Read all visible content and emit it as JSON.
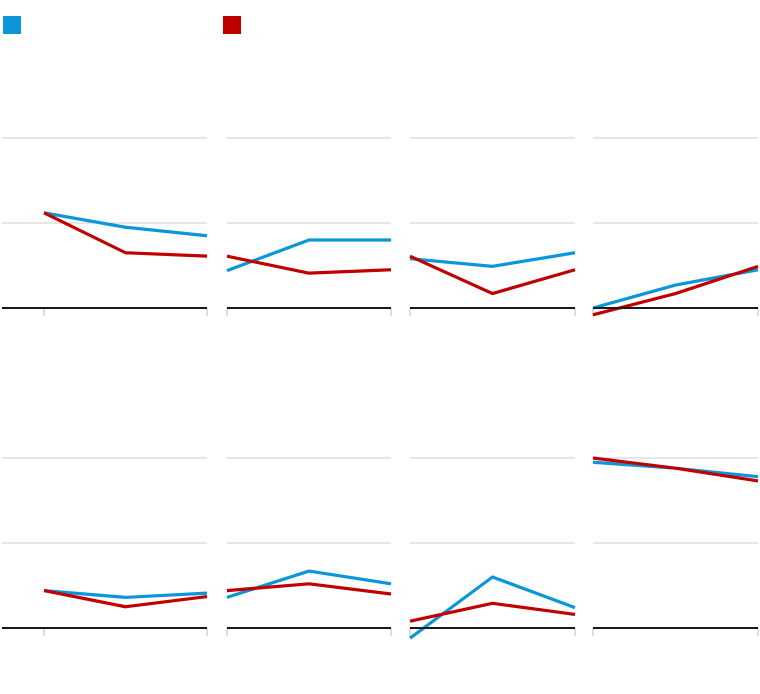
{
  "chart_data": {
    "type": "line",
    "title": "",
    "legend": {
      "placement": "top-left",
      "entries": [
        {
          "name": "",
          "color": "#0B96DA"
        },
        {
          "name": "",
          "color": "#C00000"
        }
      ]
    },
    "grid": true,
    "ylim": [
      0,
      200
    ],
    "gridlines": [
      100,
      200
    ],
    "x": [
      0,
      1,
      2
    ],
    "panels": [
      {
        "series": [
          {
            "color": "#0B96DA",
            "values": [
              112,
              95,
              85
            ]
          },
          {
            "color": "#C00000",
            "values": [
              112,
              65,
              61
            ]
          }
        ]
      },
      {
        "series": [
          {
            "color": "#0B96DA",
            "values": [
              44,
              80,
              80
            ]
          },
          {
            "color": "#C00000",
            "values": [
              61,
              41,
              45
            ]
          }
        ]
      },
      {
        "series": [
          {
            "color": "#0B96DA",
            "values": [
              58,
              49,
              65
            ]
          },
          {
            "color": "#C00000",
            "values": [
              61,
              17,
              45
            ]
          }
        ]
      },
      {
        "series": [
          {
            "color": "#0B96DA",
            "values": [
              0,
              27,
              45
            ]
          },
          {
            "color": "#C00000",
            "values": [
              -8,
              17,
              49
            ]
          }
        ]
      },
      {
        "series": [
          {
            "color": "#0B96DA",
            "values": [
              44,
              36,
              41
            ]
          },
          {
            "color": "#C00000",
            "values": [
              44,
              25,
              37
            ]
          }
        ]
      },
      {
        "series": [
          {
            "color": "#0B96DA",
            "values": [
              36,
              67,
              52
            ]
          },
          {
            "color": "#C00000",
            "values": [
              44,
              52,
              40
            ]
          }
        ]
      },
      {
        "series": [
          {
            "color": "#0B96DA",
            "values": [
              -12,
              60,
              24
            ]
          },
          {
            "color": "#C00000",
            "values": [
              8,
              29,
              16
            ]
          }
        ]
      },
      {
        "series": [
          {
            "color": "#0B96DA",
            "values": [
              195,
              188,
              178
            ]
          },
          {
            "color": "#C00000",
            "values": [
              200,
              188,
              173
            ]
          }
        ]
      }
    ]
  }
}
